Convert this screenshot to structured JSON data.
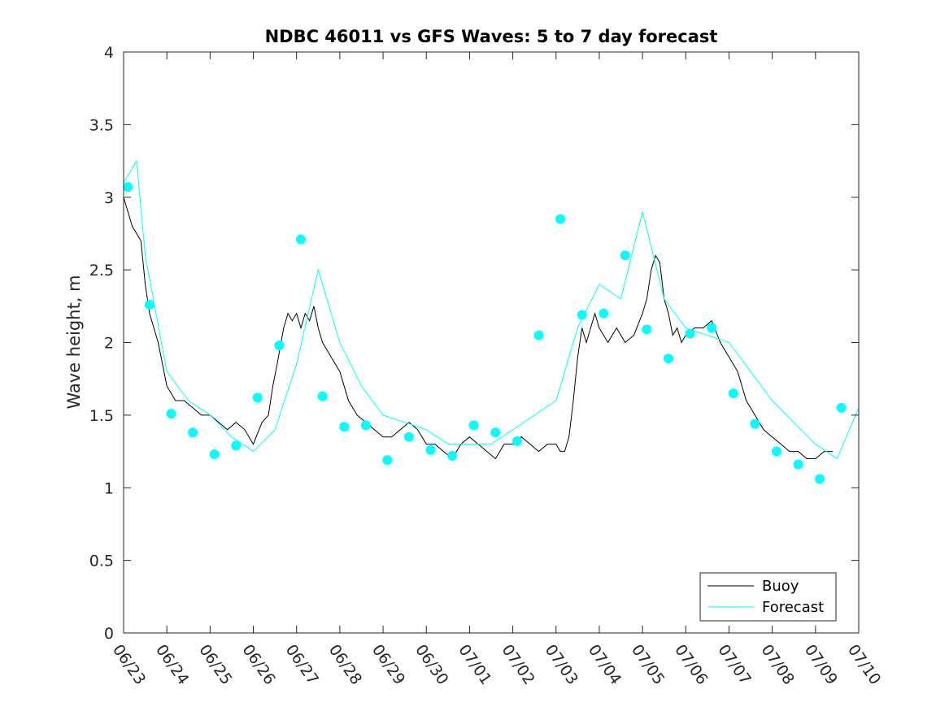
{
  "chart_data": {
    "type": "line",
    "title": "NDBC 46011 vs GFS Waves: 5 to 7 day forecast",
    "xlabel": "",
    "ylabel": "Wave height, m",
    "xlim": [
      0,
      17
    ],
    "ylim": [
      0,
      4
    ],
    "x_tick_labels": [
      "06/23",
      "06/24",
      "06/25",
      "06/26",
      "06/27",
      "06/28",
      "06/29",
      "06/30",
      "07/01",
      "07/02",
      "07/03",
      "07/04",
      "07/05",
      "07/06",
      "07/07",
      "07/08",
      "07/09",
      "07/10"
    ],
    "y_tick_labels": [
      "0",
      "0.5",
      "1",
      "1.5",
      "2",
      "2.5",
      "3",
      "3.5",
      "4"
    ],
    "y_ticks": [
      0,
      0.5,
      1,
      1.5,
      2,
      2.5,
      3,
      3.5,
      4
    ],
    "grid": false,
    "legend_position": "bottom-right",
    "colors": {
      "buoy": "#000000",
      "forecast": "#00ffff"
    },
    "series": [
      {
        "name": "Buoy",
        "x": [
          0,
          0.2,
          0.4,
          0.5,
          0.6,
          0.7,
          0.8,
          1.0,
          1.2,
          1.4,
          1.6,
          1.8,
          2.0,
          2.2,
          2.4,
          2.6,
          2.8,
          3.0,
          3.2,
          3.35,
          3.45,
          3.55,
          3.7,
          3.8,
          3.9,
          4.0,
          4.1,
          4.2,
          4.3,
          4.4,
          4.5,
          4.6,
          4.8,
          5.0,
          5.2,
          5.4,
          5.6,
          5.8,
          6.0,
          6.2,
          6.4,
          6.6,
          6.8,
          7.0,
          7.2,
          7.4,
          7.6,
          7.8,
          8.0,
          8.2,
          8.4,
          8.6,
          8.8,
          9.0,
          9.2,
          9.4,
          9.6,
          9.8,
          10.0,
          10.1,
          10.2,
          10.3,
          10.4,
          10.5,
          10.6,
          10.7,
          10.8,
          10.9,
          11.0,
          11.2,
          11.4,
          11.6,
          11.8,
          12.0,
          12.1,
          12.2,
          12.3,
          12.4,
          12.5,
          12.6,
          12.7,
          12.8,
          12.9,
          13.0,
          13.2,
          13.4,
          13.6,
          13.8,
          14.0,
          14.2,
          14.4,
          14.6,
          14.8,
          15.0,
          15.2,
          15.4,
          15.6,
          15.8,
          16.0,
          16.2,
          16.4
        ],
        "y": [
          3.0,
          2.8,
          2.7,
          2.4,
          2.2,
          2.1,
          2.0,
          1.7,
          1.6,
          1.6,
          1.55,
          1.5,
          1.5,
          1.45,
          1.4,
          1.45,
          1.4,
          1.3,
          1.45,
          1.5,
          1.7,
          1.85,
          2.1,
          2.2,
          2.15,
          2.2,
          2.1,
          2.2,
          2.15,
          2.25,
          2.1,
          2.0,
          1.9,
          1.8,
          1.6,
          1.5,
          1.45,
          1.4,
          1.35,
          1.35,
          1.4,
          1.45,
          1.4,
          1.3,
          1.3,
          1.25,
          1.2,
          1.3,
          1.35,
          1.3,
          1.25,
          1.2,
          1.3,
          1.3,
          1.35,
          1.3,
          1.25,
          1.3,
          1.3,
          1.25,
          1.25,
          1.35,
          1.6,
          1.9,
          2.1,
          2.0,
          2.1,
          2.2,
          2.1,
          2.0,
          2.1,
          2.0,
          2.05,
          2.2,
          2.3,
          2.5,
          2.6,
          2.55,
          2.3,
          2.2,
          2.05,
          2.1,
          2.0,
          2.05,
          2.1,
          2.1,
          2.15,
          2.0,
          1.9,
          1.8,
          1.6,
          1.5,
          1.4,
          1.35,
          1.3,
          1.25,
          1.25,
          1.2,
          1.2,
          1.25,
          1.25
        ]
      },
      {
        "name": "Forecast",
        "x": [
          0,
          0.3,
          0.5,
          1.0,
          1.5,
          2.0,
          2.5,
          3.0,
          3.5,
          4.0,
          4.5,
          5.0,
          5.5,
          6.0,
          6.5,
          7.0,
          7.5,
          8.0,
          8.5,
          9.0,
          9.5,
          10.0,
          10.5,
          11.0,
          11.5,
          12.0,
          12.5,
          13.0,
          13.5,
          14.0,
          14.5,
          15.0,
          15.5,
          16.0,
          16.5,
          17.0
        ],
        "y": [
          3.1,
          3.25,
          2.6,
          1.8,
          1.6,
          1.5,
          1.35,
          1.25,
          1.4,
          1.85,
          2.5,
          2.0,
          1.7,
          1.5,
          1.45,
          1.4,
          1.3,
          1.3,
          1.3,
          1.4,
          1.5,
          1.6,
          2.1,
          2.4,
          2.3,
          2.9,
          2.3,
          2.1,
          2.05,
          2.0,
          1.8,
          1.6,
          1.45,
          1.3,
          1.2,
          1.55
        ]
      }
    ],
    "forecast_markers": {
      "x": [
        0.1,
        0.6,
        1.1,
        1.6,
        2.1,
        2.6,
        3.1,
        3.6,
        4.1,
        4.6,
        5.1,
        5.6,
        6.1,
        6.6,
        7.1,
        7.6,
        8.1,
        8.6,
        9.1,
        9.6,
        10.1,
        10.6,
        11.1,
        11.6,
        12.1,
        12.6,
        13.1,
        13.6,
        14.1,
        14.6,
        15.1,
        15.6,
        16.1,
        16.6
      ],
      "y": [
        3.07,
        2.26,
        1.51,
        1.38,
        1.23,
        1.29,
        1.62,
        1.98,
        2.71,
        1.63,
        1.42,
        1.43,
        1.19,
        1.35,
        1.26,
        1.22,
        1.43,
        1.38,
        1.32,
        2.05,
        2.85,
        2.19,
        2.2,
        2.6,
        2.09,
        1.89,
        2.06,
        2.1,
        1.65,
        1.44,
        1.25,
        1.16,
        1.06,
        1.55
      ]
    },
    "legend": {
      "buoy_label": "Buoy",
      "forecast_label": "Forecast"
    }
  }
}
